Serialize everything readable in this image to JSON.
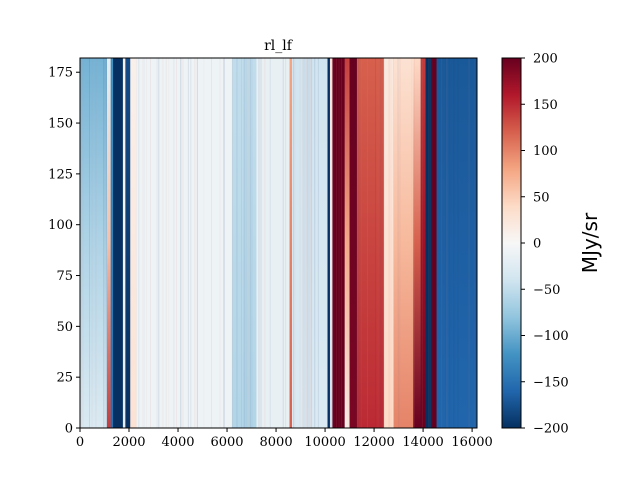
{
  "chart_data": {
    "type": "heatmap",
    "title": "rl_lf",
    "xlabel": "",
    "ylabel": "",
    "xlim": [
      0,
      16200
    ],
    "ylim": [
      0,
      182
    ],
    "x_ticks": [
      "0",
      "2000",
      "4000",
      "6000",
      "8000",
      "10000",
      "12000",
      "14000",
      "16000"
    ],
    "x_tick_values": [
      0,
      2000,
      4000,
      6000,
      8000,
      10000,
      12000,
      14000,
      16000
    ],
    "y_ticks": [
      "0",
      "25",
      "50",
      "75",
      "100",
      "125",
      "150",
      "175"
    ],
    "y_tick_values": [
      0,
      25,
      50,
      75,
      100,
      125,
      150,
      175
    ],
    "colorbar": {
      "label": "MJy/sr",
      "cmap": "RdBu_r",
      "vmin": -200,
      "vmax": 200,
      "ticks": [
        "200",
        "150",
        "100",
        "50",
        "0",
        "−50",
        "−100",
        "−150",
        "−200"
      ],
      "tick_values": [
        200,
        150,
        100,
        50,
        0,
        -50,
        -100,
        -150,
        -200
      ]
    },
    "bands": [
      {
        "x0": 0,
        "x1": 1100,
        "v_bottom": -30,
        "v_top": -95
      },
      {
        "x0": 1100,
        "x1": 1250,
        "v_bottom": 140,
        "v_top": -20
      },
      {
        "x0": 1250,
        "x1": 1350,
        "v_bottom": -150,
        "v_top": -120
      },
      {
        "x0": 1350,
        "x1": 1750,
        "v_bottom": -200,
        "v_top": -200
      },
      {
        "x0": 1750,
        "x1": 1850,
        "v_bottom": -20,
        "v_top": 10
      },
      {
        "x0": 1850,
        "x1": 2050,
        "v_bottom": -200,
        "v_top": -180
      },
      {
        "x0": 2050,
        "x1": 2300,
        "v_bottom": 30,
        "v_top": 10
      },
      {
        "x0": 2300,
        "x1": 6200,
        "v_bottom": -10,
        "v_top": -10
      },
      {
        "x0": 6200,
        "x1": 7200,
        "v_bottom": -60,
        "v_top": -50
      },
      {
        "x0": 7200,
        "x1": 8550,
        "v_bottom": -15,
        "v_top": -15
      },
      {
        "x0": 8550,
        "x1": 8650,
        "v_bottom": 120,
        "v_top": 80
      },
      {
        "x0": 8650,
        "x1": 10100,
        "v_bottom": -30,
        "v_top": -40
      },
      {
        "x0": 10100,
        "x1": 10200,
        "v_bottom": -200,
        "v_top": -200
      },
      {
        "x0": 10200,
        "x1": 10300,
        "v_bottom": -40,
        "v_top": 20
      },
      {
        "x0": 10300,
        "x1": 10800,
        "v_bottom": 200,
        "v_top": 200
      },
      {
        "x0": 10800,
        "x1": 11000,
        "v_bottom": 10,
        "v_top": 140
      },
      {
        "x0": 11000,
        "x1": 11300,
        "v_bottom": 190,
        "v_top": 200
      },
      {
        "x0": 11300,
        "x1": 12400,
        "v_bottom": 150,
        "v_top": 120
      },
      {
        "x0": 12400,
        "x1": 12800,
        "v_bottom": 40,
        "v_top": 20
      },
      {
        "x0": 12800,
        "x1": 13600,
        "v_bottom": 100,
        "v_top": 30
      },
      {
        "x0": 13600,
        "x1": 13900,
        "v_bottom": 200,
        "v_top": 40
      },
      {
        "x0": 13900,
        "x1": 14100,
        "v_bottom": 200,
        "v_top": 140
      },
      {
        "x0": 14100,
        "x1": 14350,
        "v_bottom": -200,
        "v_top": -200
      },
      {
        "x0": 14350,
        "x1": 14550,
        "v_bottom": 200,
        "v_top": 200
      },
      {
        "x0": 14550,
        "x1": 16200,
        "v_bottom": -160,
        "v_top": -170
      }
    ]
  }
}
